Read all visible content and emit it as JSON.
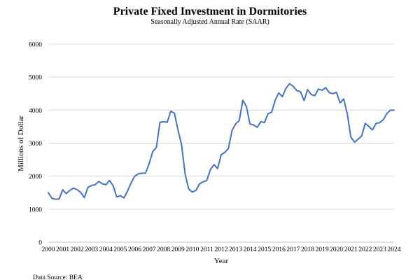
{
  "chart_data": {
    "type": "line",
    "title": "Private Fixed Investment in Dormitories",
    "subtitle": "Seasonally Adjusted Annual Rate (SAAR)",
    "xlabel": "Year",
    "ylabel": "Millions of Dollar",
    "source": "Data Source: BEA",
    "xlim": [
      2000,
      2024
    ],
    "ylim": [
      0,
      6000
    ],
    "yticks": [
      0,
      1000,
      2000,
      3000,
      4000,
      5000,
      6000
    ],
    "xticks": [
      "2000",
      "2001",
      "2002",
      "2003",
      "2004",
      "2005",
      "2006",
      "2007",
      "2008",
      "2009",
      "2010",
      "2011",
      "2012",
      "2013",
      "2014",
      "2015",
      "2016",
      "2017",
      "2018",
      "2019",
      "2020",
      "2021",
      "2022",
      "2023",
      "2024"
    ],
    "grid": true,
    "legend": "none",
    "line_color": "#4472c4",
    "series": [
      {
        "x": [
          2000.0,
          2000.25,
          2000.5,
          2000.75,
          2001.0,
          2001.25,
          2001.5,
          2001.75,
          2002.0,
          2002.25,
          2002.5,
          2002.75,
          2003.0,
          2003.25,
          2003.5,
          2003.75,
          2004.0,
          2004.25,
          2004.5,
          2004.75,
          2005.0,
          2005.25,
          2005.5,
          2005.75,
          2006.0,
          2006.25,
          2006.5,
          2006.75,
          2007.0,
          2007.25,
          2007.5,
          2007.75,
          2008.0,
          2008.25,
          2008.5,
          2008.75,
          2009.0,
          2009.25,
          2009.5,
          2009.75,
          2010.0,
          2010.25,
          2010.5,
          2010.75,
          2011.0,
          2011.25,
          2011.5,
          2011.75,
          2012.0,
          2012.25,
          2012.5,
          2012.75,
          2013.0,
          2013.25,
          2013.5,
          2013.75,
          2014.0,
          2014.25,
          2014.5,
          2014.75,
          2015.0,
          2015.25,
          2015.5,
          2015.75,
          2016.0,
          2016.25,
          2016.5,
          2016.75,
          2017.0,
          2017.25,
          2017.5,
          2017.75,
          2018.0,
          2018.25,
          2018.5,
          2018.75,
          2019.0,
          2019.25,
          2019.5,
          2019.75,
          2020.0,
          2020.25,
          2020.5,
          2020.75,
          2021.0,
          2021.25,
          2021.5,
          2021.75,
          2022.0,
          2022.25,
          2022.5,
          2022.75,
          2023.0,
          2023.25,
          2023.5,
          2023.75,
          2024.0
        ],
        "values": [
          1500,
          1330,
          1300,
          1310,
          1590,
          1470,
          1570,
          1640,
          1590,
          1510,
          1350,
          1660,
          1720,
          1740,
          1840,
          1770,
          1740,
          1870,
          1710,
          1370,
          1410,
          1340,
          1550,
          1800,
          2000,
          2070,
          2090,
          2090,
          2380,
          2740,
          2870,
          3630,
          3650,
          3630,
          3970,
          3910,
          3400,
          2950,
          2050,
          1610,
          1520,
          1570,
          1770,
          1830,
          1870,
          2200,
          2350,
          2230,
          2650,
          2720,
          2840,
          3380,
          3580,
          3680,
          4300,
          4110,
          3580,
          3550,
          3480,
          3650,
          3620,
          3890,
          3940,
          4300,
          4520,
          4410,
          4670,
          4800,
          4720,
          4590,
          4560,
          4290,
          4620,
          4470,
          4440,
          4640,
          4600,
          4680,
          4530,
          4500,
          4540,
          4220,
          4340,
          3890,
          3180,
          3030,
          3120,
          3220,
          3600,
          3500,
          3400,
          3600,
          3620,
          3710,
          3900,
          4000,
          4000
        ]
      }
    ]
  }
}
